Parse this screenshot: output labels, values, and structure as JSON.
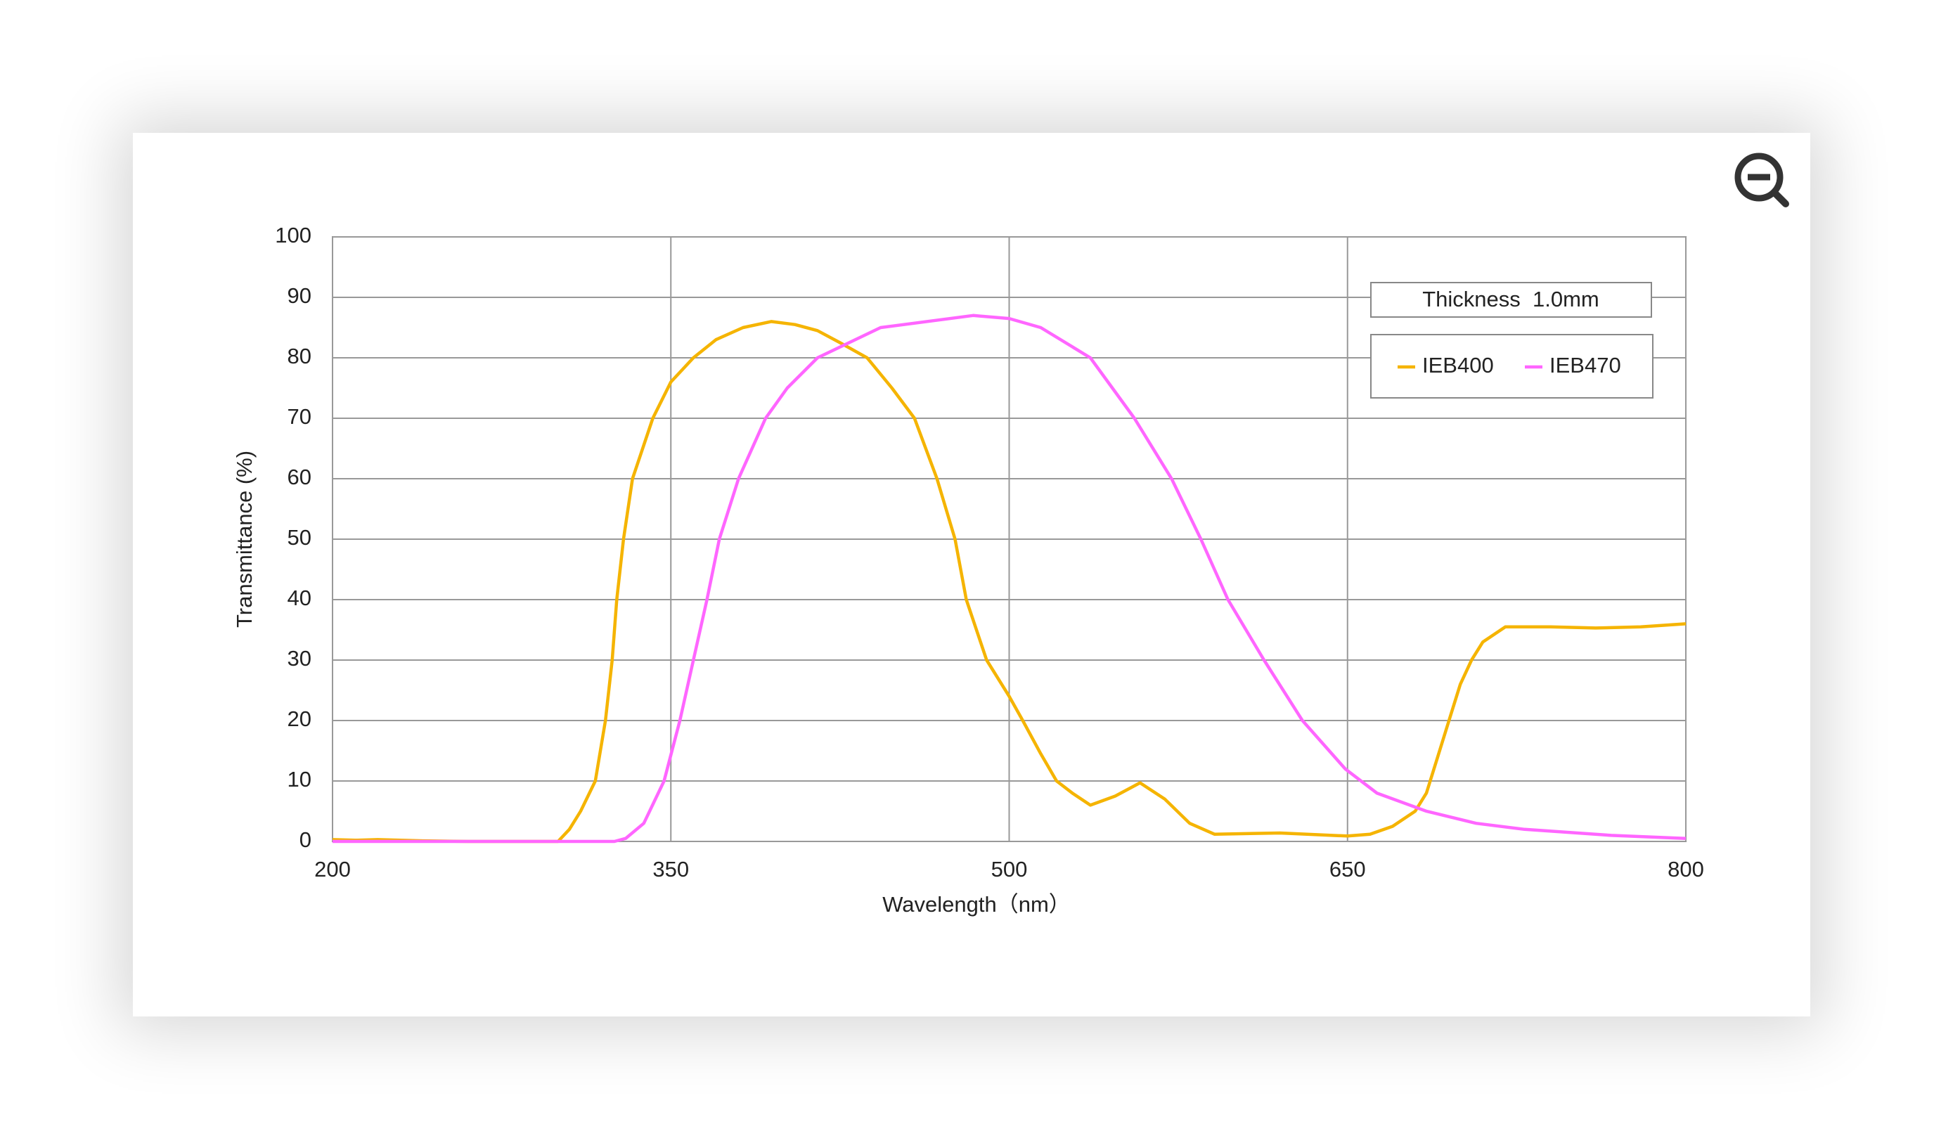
{
  "chart_data": {
    "type": "line",
    "xlabel": "Wavelength（nm）",
    "ylabel": "Transmittance (%)",
    "annotation": "Thickness  1.0mm",
    "xlim": [
      200,
      800
    ],
    "xticks": [
      200,
      350,
      500,
      650,
      800
    ],
    "ylim": [
      0,
      100
    ],
    "yticks": [
      0,
      10,
      20,
      30,
      40,
      50,
      60,
      70,
      80,
      90,
      100
    ],
    "grid": true,
    "legend": "upper right",
    "series": [
      {
        "name": "IEB400",
        "color": "#f5b400",
        "x": [
          200,
          210,
          220,
          240,
          260,
          280,
          300,
          305,
          310,
          316.5,
          321,
          324,
          326,
          329,
          333,
          342,
          350,
          360,
          370,
          382,
          394.5,
          405,
          415,
          425,
          437,
          448,
          458,
          468,
          476,
          481,
          490,
          500,
          506,
          514,
          521,
          528,
          536,
          547,
          558,
          569,
          580,
          591,
          620,
          650,
          660,
          670,
          680,
          685,
          690,
          695,
          700,
          705,
          710,
          720,
          740,
          760,
          780,
          800
        ],
        "values": [
          0.3,
          0.2,
          0.3,
          0.1,
          0,
          0,
          0,
          2,
          5,
          10,
          20,
          30,
          40,
          50,
          60,
          70,
          76,
          80,
          83,
          85,
          86,
          85.5,
          84.5,
          82.5,
          80,
          75,
          70,
          60,
          50,
          40,
          30,
          24,
          20,
          14.5,
          10,
          8,
          6,
          7.5,
          9.7,
          7,
          3,
          1.2,
          1.4,
          0.9,
          1.2,
          2.5,
          5,
          8,
          14,
          20,
          26,
          30,
          33,
          35.5,
          35.5,
          35.3,
          35.5,
          36
        ]
      },
      {
        "name": "IEB470",
        "color": "#ff66ff",
        "x": [
          200,
          260,
          300,
          325,
          330,
          338,
          347,
          354,
          360,
          366,
          371.5,
          380,
          392,
          401.6,
          415,
          443,
          484,
          500,
          514,
          536,
          555.5,
          572,
          585,
          597,
          613,
          630,
          649,
          663,
          685,
          707,
          728.5,
          767,
          800
        ],
        "values": [
          0,
          0,
          0,
          0,
          0.5,
          3,
          10,
          20,
          30,
          40,
          50,
          60,
          70,
          75,
          80,
          85,
          87,
          86.5,
          85,
          80,
          70,
          60,
          50,
          40,
          30,
          20,
          12,
          8,
          5,
          3,
          2,
          1,
          0.5
        ]
      }
    ]
  }
}
